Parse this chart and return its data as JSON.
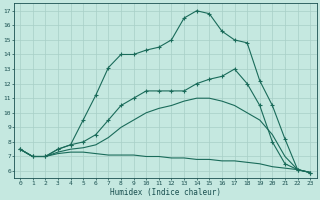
{
  "xlabel": "Humidex (Indice chaleur)",
  "xlim": [
    -0.5,
    23.5
  ],
  "ylim": [
    5.5,
    17.5
  ],
  "xticks": [
    0,
    1,
    2,
    3,
    4,
    5,
    6,
    7,
    8,
    9,
    10,
    11,
    12,
    13,
    14,
    15,
    16,
    17,
    18,
    19,
    20,
    21,
    22,
    23
  ],
  "yticks": [
    6,
    7,
    8,
    9,
    10,
    11,
    12,
    13,
    14,
    15,
    16,
    17
  ],
  "background_color": "#c5e8e0",
  "grid_color": "#a8cfc7",
  "line_color": "#1a6b5a",
  "curve_max": {
    "x": [
      0,
      1,
      2,
      3,
      4,
      5,
      6,
      7,
      8,
      9,
      10,
      11,
      12,
      13,
      14,
      15,
      16,
      17,
      18,
      19,
      20,
      21,
      22,
      23
    ],
    "y": [
      7.5,
      7.0,
      7.0,
      7.5,
      7.8,
      9.5,
      11.2,
      13.1,
      14.0,
      14.0,
      14.3,
      14.5,
      15.0,
      16.5,
      17.0,
      16.8,
      15.6,
      15.0,
      14.8,
      12.2,
      10.5,
      8.2,
      6.1,
      5.9
    ]
  },
  "curve_avg": {
    "x": [
      0,
      1,
      2,
      3,
      4,
      5,
      6,
      7,
      8,
      9,
      10,
      11,
      12,
      13,
      14,
      15,
      16,
      17,
      18,
      19,
      20,
      21,
      22,
      23
    ],
    "y": [
      7.5,
      7.0,
      7.0,
      7.5,
      7.8,
      8.0,
      8.5,
      9.5,
      10.5,
      11.0,
      11.5,
      11.5,
      11.5,
      11.5,
      12.0,
      12.3,
      12.5,
      13.0,
      12.0,
      10.5,
      8.0,
      6.5,
      6.1,
      5.9
    ]
  },
  "curve_min2": {
    "x": [
      0,
      1,
      2,
      3,
      4,
      5,
      6,
      7,
      8,
      9,
      10,
      11,
      12,
      13,
      14,
      15,
      16,
      17,
      18,
      19,
      20,
      21,
      22,
      23
    ],
    "y": [
      7.5,
      7.0,
      7.0,
      7.3,
      7.5,
      7.6,
      7.8,
      8.3,
      9.0,
      9.5,
      10.0,
      10.3,
      10.5,
      10.8,
      11.0,
      11.0,
      10.8,
      10.5,
      10.0,
      9.5,
      8.5,
      7.0,
      6.1,
      5.9
    ]
  },
  "curve_min": {
    "x": [
      0,
      1,
      2,
      3,
      4,
      5,
      6,
      7,
      8,
      9,
      10,
      11,
      12,
      13,
      14,
      15,
      16,
      17,
      18,
      19,
      20,
      21,
      22,
      23
    ],
    "y": [
      7.5,
      7.0,
      7.0,
      7.2,
      7.3,
      7.3,
      7.2,
      7.1,
      7.1,
      7.1,
      7.0,
      7.0,
      6.9,
      6.9,
      6.8,
      6.8,
      6.7,
      6.7,
      6.6,
      6.5,
      6.3,
      6.2,
      6.1,
      5.9
    ]
  }
}
